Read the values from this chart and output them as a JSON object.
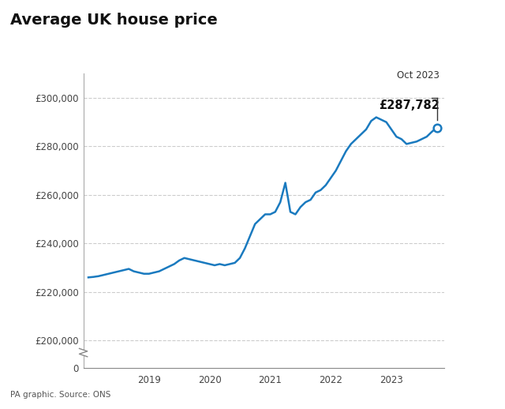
{
  "title": "Average UK house price",
  "source": "PA graphic. Source: ONS",
  "annotation_date": "Oct 2023",
  "annotation_value": "£287,782",
  "line_color": "#1a7abf",
  "background_color": "#ffffff",
  "ylim_main": [
    195000,
    310000
  ],
  "ylim_zero": [
    0,
    310000
  ],
  "yticks": [
    200000,
    220000,
    240000,
    260000,
    280000,
    300000
  ],
  "ytick_labels": [
    "£200,000",
    "£220,000",
    "£240,000",
    "£260,000",
    "£280,000",
    "£300,000"
  ],
  "xtick_years": [
    "2019",
    "2020",
    "2021",
    "2022",
    "2023"
  ],
  "xtick_positions": [
    12,
    24,
    36,
    48,
    60
  ],
  "data_values": [
    226000,
    226200,
    226500,
    227000,
    227500,
    228000,
    228500,
    229000,
    229500,
    228500,
    228000,
    227500,
    227500,
    228000,
    228500,
    229500,
    230500,
    231500,
    233000,
    234000,
    233500,
    233000,
    232500,
    232000,
    231500,
    231000,
    231500,
    231000,
    231500,
    232000,
    234000,
    238000,
    243000,
    248000,
    250000,
    252000,
    252000,
    253000,
    257000,
    265000,
    253000,
    252000,
    255000,
    257000,
    258000,
    261000,
    262000,
    264000,
    267000,
    270000,
    274000,
    278000,
    281000,
    283000,
    285000,
    287000,
    290500,
    292000,
    291000,
    290000,
    287000,
    284000,
    283000,
    281000,
    281500,
    282000,
    283000,
    284000,
    286000,
    287782
  ]
}
